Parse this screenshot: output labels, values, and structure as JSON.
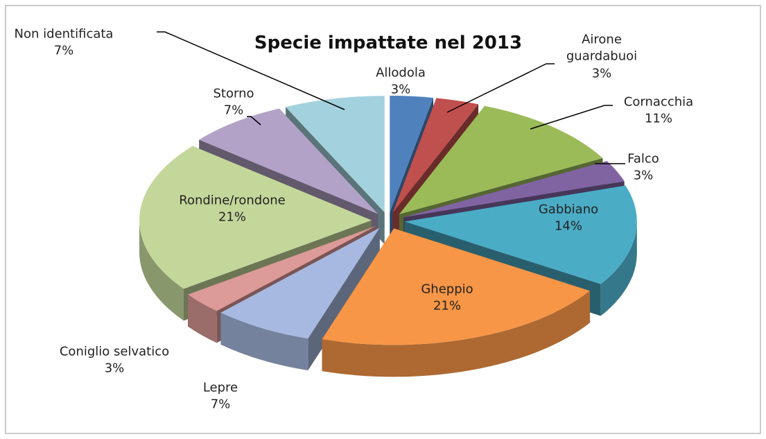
{
  "chart_data": {
    "type": "pie3d",
    "title": "Specie impattate nel 2013",
    "categories": [
      "Allodola",
      "Airone guardabuoi",
      "Cornacchia",
      "Falco",
      "Gabbiano",
      "Gheppio",
      "Lepre",
      "Coniglio selvatico",
      "Rondine/rondone",
      "Storno",
      "Non identificata"
    ],
    "values": [
      3,
      3,
      11,
      3,
      14,
      21,
      7,
      3,
      21,
      7,
      7
    ],
    "value_labels": [
      "3%",
      "3%",
      "11%",
      "3%",
      "14%",
      "21%",
      "7%",
      "3%",
      "21%",
      "7%",
      "7%"
    ],
    "colors": [
      "#4f81bd",
      "#c0504d",
      "#9bbb59",
      "#8064a2",
      "#4bacc6",
      "#f79646",
      "#a7b9e0",
      "#dc9a98",
      "#c4d79b",
      "#b3a2c7",
      "#a3d2de"
    ]
  }
}
